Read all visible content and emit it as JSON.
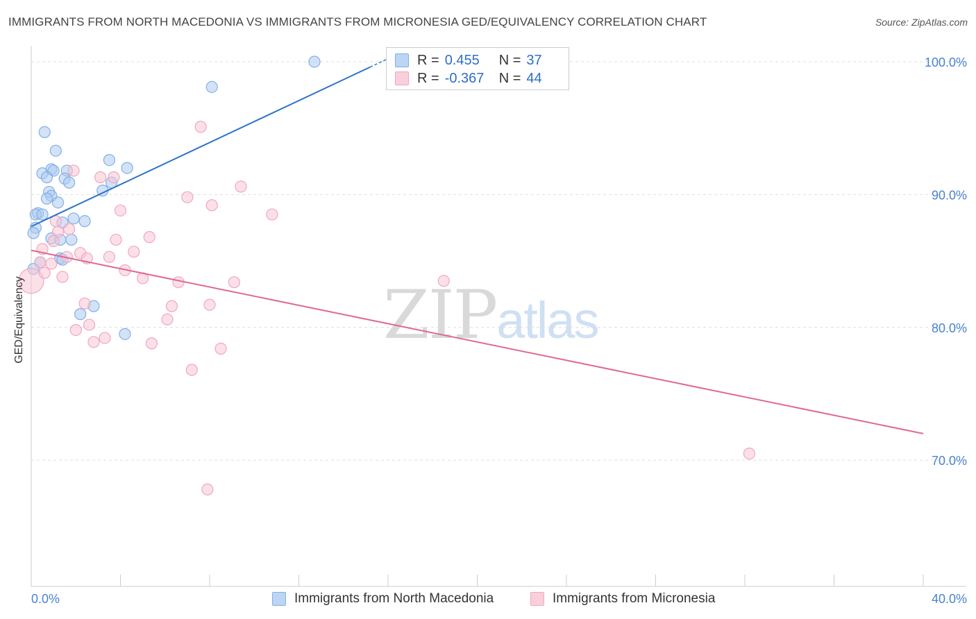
{
  "title": "IMMIGRANTS FROM NORTH MACEDONIA VS IMMIGRANTS FROM MICRONESIA GED/EQUIVALENCY CORRELATION CHART",
  "source": "Source: ZipAtlas.com",
  "watermark": {
    "zip": "ZIP",
    "atlas": "atlas"
  },
  "legend": {
    "r_label": "R =",
    "n_label": "N =",
    "entries": [
      {
        "r": "0.455",
        "n": "37"
      },
      {
        "r": "-0.367",
        "n": "44"
      }
    ]
  },
  "chart_data": {
    "type": "scatter",
    "ylabel": "GED/Equivalency",
    "x_tick_labels": [
      "0.0%",
      "40.0%"
    ],
    "y_tick_labels": [
      "100.0%",
      "90.0%",
      "80.0%",
      "70.0%"
    ],
    "xlim": [
      0,
      40
    ],
    "ylim": [
      60.5,
      101.2
    ],
    "y_ticks": [
      100,
      90,
      80,
      70
    ],
    "grid": true,
    "legend_position": "top-center",
    "series": [
      {
        "name": "Immigrants from North Macedonia",
        "color": "#7fb0e8",
        "fill": "#aecbf0",
        "trend_color": "#2e73c9",
        "trend": {
          "x0": 0,
          "y0": 87.6,
          "x1": 15.2,
          "y1": 99.6
        },
        "points": [
          [
            12.7,
            100.0
          ],
          [
            8.1,
            98.1
          ],
          [
            0.6,
            94.7
          ],
          [
            1.1,
            93.3
          ],
          [
            3.5,
            92.6
          ],
          [
            4.3,
            92.0
          ],
          [
            0.9,
            91.9
          ],
          [
            0.5,
            91.6
          ],
          [
            1.0,
            91.8
          ],
          [
            1.6,
            91.8
          ],
          [
            0.7,
            91.3
          ],
          [
            1.5,
            91.2
          ],
          [
            1.7,
            90.9
          ],
          [
            3.6,
            90.9
          ],
          [
            3.2,
            90.3
          ],
          [
            0.8,
            90.2
          ],
          [
            0.9,
            89.9
          ],
          [
            0.7,
            89.7
          ],
          [
            1.2,
            89.4
          ],
          [
            0.3,
            88.6
          ],
          [
            0.2,
            88.5
          ],
          [
            0.5,
            88.5
          ],
          [
            1.9,
            88.2
          ],
          [
            2.4,
            88.0
          ],
          [
            1.4,
            87.9
          ],
          [
            0.2,
            87.5
          ],
          [
            0.1,
            87.1
          ],
          [
            0.9,
            86.7
          ],
          [
            1.3,
            86.6
          ],
          [
            1.8,
            86.6
          ],
          [
            1.3,
            85.2
          ],
          [
            1.4,
            85.1
          ],
          [
            0.4,
            84.9
          ],
          [
            0.1,
            84.4
          ],
          [
            2.8,
            81.6
          ],
          [
            2.2,
            81.0
          ],
          [
            4.2,
            79.5
          ]
        ]
      },
      {
        "name": "Immigrants from Micronesia",
        "color": "#f2a6bf",
        "fill": "#f8c6d6",
        "trend_color": "#e0688f",
        "trend": {
          "x0": 0,
          "y0": 85.8,
          "x1": 40,
          "y1": 72.0
        },
        "points": [
          [
            0.0,
            83.5
          ],
          [
            7.6,
            95.1
          ],
          [
            1.9,
            91.8
          ],
          [
            3.1,
            91.3
          ],
          [
            3.7,
            91.3
          ],
          [
            9.4,
            90.6
          ],
          [
            7.0,
            89.8
          ],
          [
            8.1,
            89.2
          ],
          [
            4.0,
            88.8
          ],
          [
            10.8,
            88.5
          ],
          [
            1.1,
            88.0
          ],
          [
            1.7,
            87.4
          ],
          [
            1.2,
            87.2
          ],
          [
            3.8,
            86.6
          ],
          [
            5.3,
            86.8
          ],
          [
            1.0,
            86.5
          ],
          [
            0.5,
            85.9
          ],
          [
            4.6,
            85.7
          ],
          [
            2.2,
            85.6
          ],
          [
            3.5,
            85.3
          ],
          [
            1.6,
            85.3
          ],
          [
            2.5,
            85.2
          ],
          [
            0.9,
            84.8
          ],
          [
            0.4,
            84.9
          ],
          [
            4.2,
            84.3
          ],
          [
            0.6,
            84.1
          ],
          [
            1.4,
            83.8
          ],
          [
            5.0,
            83.7
          ],
          [
            6.6,
            83.4
          ],
          [
            9.1,
            83.4
          ],
          [
            18.5,
            83.5
          ],
          [
            2.4,
            81.8
          ],
          [
            6.3,
            81.6
          ],
          [
            8.0,
            81.7
          ],
          [
            6.1,
            80.6
          ],
          [
            2.6,
            80.2
          ],
          [
            2.0,
            79.8
          ],
          [
            3.3,
            79.2
          ],
          [
            2.8,
            78.9
          ],
          [
            5.4,
            78.8
          ],
          [
            8.5,
            78.4
          ],
          [
            7.2,
            76.8
          ],
          [
            32.2,
            70.5
          ],
          [
            7.9,
            67.8
          ]
        ]
      }
    ]
  }
}
